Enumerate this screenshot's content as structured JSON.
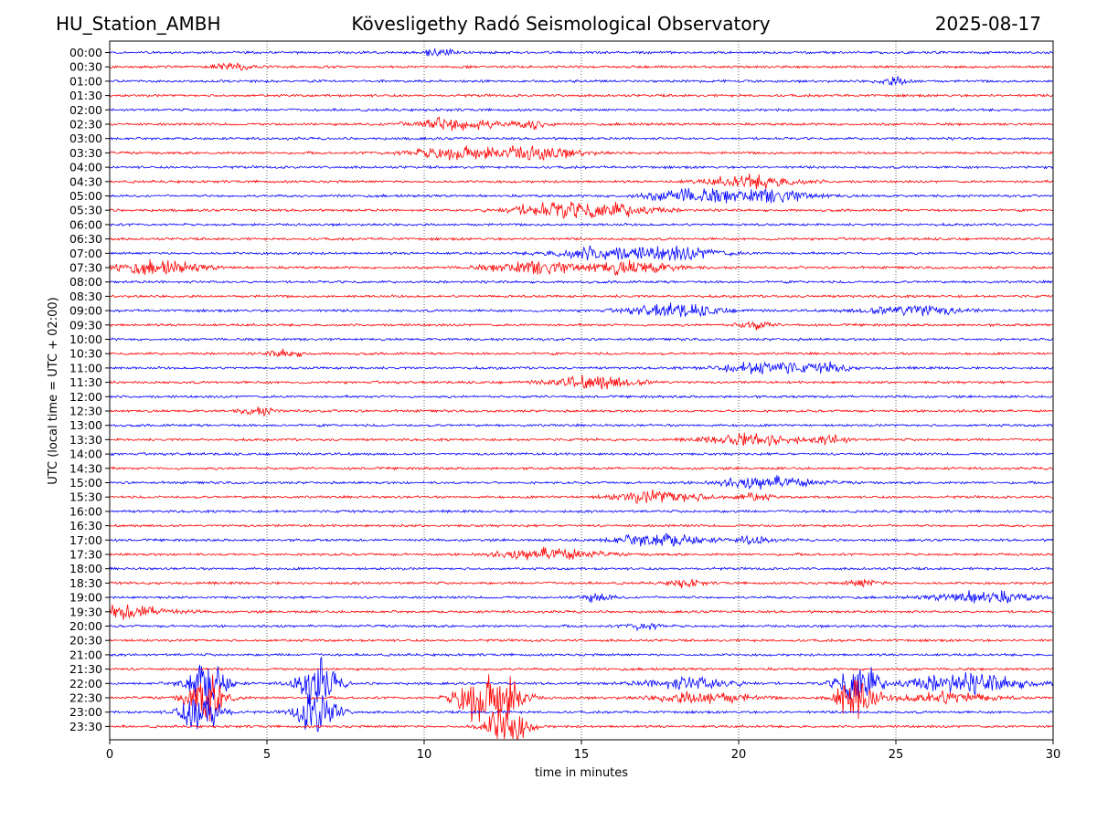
{
  "header": {
    "station": "HU_Station_AMBH",
    "observatory": "Kövesligethy Radó Seismological Observatory",
    "date": "2025-08-17"
  },
  "chart_data": {
    "type": "line",
    "title": "Kövesligethy Radó Seismological Observatory",
    "xlabel": "time in minutes",
    "ylabel": "UTC (local time = UTC + 02:00)",
    "xlim": [
      0,
      30
    ],
    "x_ticks": [
      0,
      5,
      10,
      15,
      20,
      25,
      30
    ],
    "vertical_gridlines": "dotted at 5, 10, 15, 20, 25",
    "colors": [
      "#0000ff",
      "#ff0000"
    ],
    "color_rule": "alternating per row, starting with blue at 00:00",
    "rows": [
      "00:00",
      "00:30",
      "01:00",
      "01:30",
      "02:00",
      "02:30",
      "03:00",
      "03:30",
      "04:00",
      "04:30",
      "05:00",
      "05:30",
      "06:00",
      "06:30",
      "07:00",
      "07:30",
      "08:00",
      "08:30",
      "09:00",
      "09:30",
      "10:00",
      "10:30",
      "11:00",
      "11:30",
      "12:00",
      "12:30",
      "13:00",
      "13:30",
      "14:00",
      "14:30",
      "15:00",
      "15:30",
      "16:00",
      "16:30",
      "17:00",
      "17:30",
      "18:00",
      "18:30",
      "19:00",
      "19:30",
      "20:00",
      "20:30",
      "21:00",
      "21:30",
      "22:00",
      "22:30",
      "23:00",
      "23:30"
    ],
    "events": [
      {
        "row": "00:00",
        "minute": 10.5,
        "level": "small"
      },
      {
        "row": "00:30",
        "minute": 3.9,
        "level": "small"
      },
      {
        "row": "01:00",
        "minute": 25.0,
        "level": "small"
      },
      {
        "row": "02:30",
        "minute": 11.0,
        "level": "moderate"
      },
      {
        "row": "02:30",
        "minute": 13.5,
        "level": "small"
      },
      {
        "row": "03:30",
        "minute": 11.0,
        "level": "moderate"
      },
      {
        "row": "03:30",
        "minute": 13.5,
        "level": "moderate"
      },
      {
        "row": "04:30",
        "minute": 20.5,
        "level": "moderate"
      },
      {
        "row": "05:00",
        "minute": 18.5,
        "level": "moderate"
      },
      {
        "row": "05:00",
        "minute": 21.0,
        "level": "moderate"
      },
      {
        "row": "05:30",
        "minute": 14.0,
        "level": "moderate"
      },
      {
        "row": "05:30",
        "minute": 16.0,
        "level": "moderate"
      },
      {
        "row": "07:00",
        "minute": 15.5,
        "level": "moderate"
      },
      {
        "row": "07:00",
        "minute": 18.0,
        "level": "moderate"
      },
      {
        "row": "07:30",
        "minute": 1.5,
        "level": "moderate"
      },
      {
        "row": "07:30",
        "minute": 13.5,
        "level": "moderate"
      },
      {
        "row": "07:30",
        "minute": 16.5,
        "level": "moderate"
      },
      {
        "row": "09:00",
        "minute": 18.0,
        "level": "moderate"
      },
      {
        "row": "09:00",
        "minute": 25.5,
        "level": "moderate"
      },
      {
        "row": "09:30",
        "minute": 20.5,
        "level": "small"
      },
      {
        "row": "10:30",
        "minute": 5.6,
        "level": "small"
      },
      {
        "row": "11:00",
        "minute": 21.0,
        "level": "moderate"
      },
      {
        "row": "11:00",
        "minute": 23.0,
        "level": "small"
      },
      {
        "row": "11:30",
        "minute": 15.5,
        "level": "moderate"
      },
      {
        "row": "12:30",
        "minute": 4.7,
        "level": "small"
      },
      {
        "row": "13:30",
        "minute": 20.5,
        "level": "moderate"
      },
      {
        "row": "13:30",
        "minute": 23.0,
        "level": "small"
      },
      {
        "row": "15:00",
        "minute": 21.0,
        "level": "moderate"
      },
      {
        "row": "15:30",
        "minute": 17.5,
        "level": "moderate"
      },
      {
        "row": "15:30",
        "minute": 20.5,
        "level": "small"
      },
      {
        "row": "17:00",
        "minute": 17.5,
        "level": "moderate"
      },
      {
        "row": "17:00",
        "minute": 20.5,
        "level": "small"
      },
      {
        "row": "17:30",
        "minute": 14.0,
        "level": "moderate"
      },
      {
        "row": "18:30",
        "minute": 18.3,
        "level": "small"
      },
      {
        "row": "18:30",
        "minute": 24.0,
        "level": "small"
      },
      {
        "row": "19:00",
        "minute": 15.5,
        "level": "small"
      },
      {
        "row": "19:00",
        "minute": 27.8,
        "level": "moderate"
      },
      {
        "row": "19:30",
        "minute": 0.5,
        "level": "moderate"
      },
      {
        "row": "20:00",
        "minute": 17.0,
        "level": "small"
      },
      {
        "row": "22:00",
        "minute": 3.1,
        "level": "large"
      },
      {
        "row": "22:00",
        "minute": 6.6,
        "level": "large"
      },
      {
        "row": "22:00",
        "minute": 18.5,
        "level": "moderate"
      },
      {
        "row": "22:00",
        "minute": 23.8,
        "level": "large"
      },
      {
        "row": "22:00",
        "minute": 26.5,
        "level": "moderate"
      },
      {
        "row": "22:00",
        "minute": 28.0,
        "level": "moderate"
      },
      {
        "row": "22:30",
        "minute": 3.1,
        "level": "large"
      },
      {
        "row": "22:30",
        "minute": 11.6,
        "level": "large"
      },
      {
        "row": "22:30",
        "minute": 12.6,
        "level": "large"
      },
      {
        "row": "22:30",
        "minute": 18.9,
        "level": "moderate"
      },
      {
        "row": "22:30",
        "minute": 23.7,
        "level": "large"
      },
      {
        "row": "22:30",
        "minute": 26.6,
        "level": "moderate"
      },
      {
        "row": "23:00",
        "minute": 2.9,
        "level": "large"
      },
      {
        "row": "23:00",
        "minute": 6.6,
        "level": "large"
      },
      {
        "row": "23:30",
        "minute": 12.6,
        "level": "large"
      }
    ]
  }
}
